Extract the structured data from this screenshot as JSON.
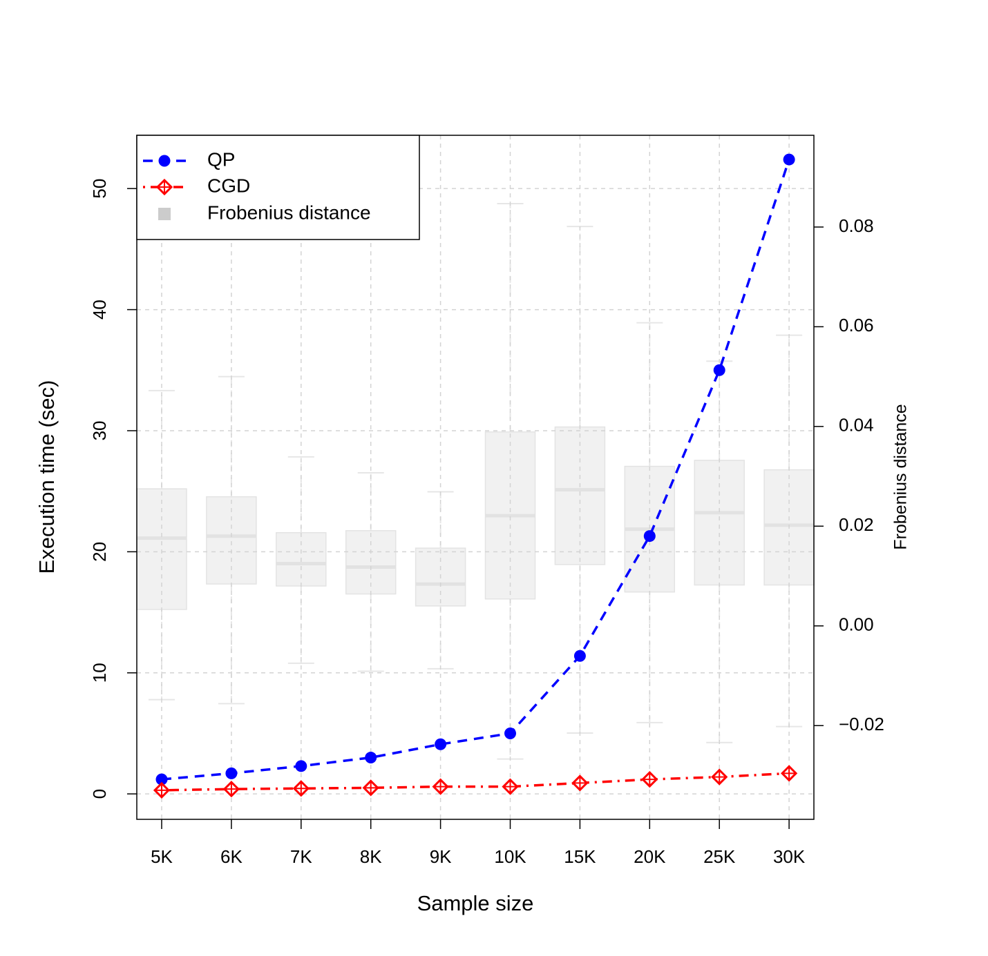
{
  "chart_data": {
    "type": "line",
    "x_label": "Sample size",
    "y_label": "Execution time (sec)",
    "y2_label": "Frobenius distance",
    "categories": [
      "5K",
      "6K",
      "7K",
      "8K",
      "9K",
      "10K",
      "15K",
      "20K",
      "25K",
      "30K"
    ],
    "series": [
      {
        "name": "QP",
        "color": "#0000ff",
        "dash": "dashed",
        "marker": "circle",
        "values": [
          1.2,
          1.7,
          2.3,
          3.0,
          4.1,
          5.0,
          11.4,
          21.3,
          35.0,
          52.4
        ]
      },
      {
        "name": "CGD",
        "color": "#ff0000",
        "dash": "dotdash",
        "marker": "diamond-plus",
        "values": [
          0.3,
          0.4,
          0.45,
          0.5,
          0.6,
          0.6,
          0.9,
          1.2,
          1.4,
          1.7
        ]
      }
    ],
    "boxes": {
      "name": "Frobenius distance",
      "color": "#cccccc",
      "axis": "y2",
      "min": [
        -0.0148,
        -0.0156,
        -0.0075,
        -0.0091,
        -0.0086,
        -0.0267,
        -0.0215,
        -0.0194,
        -0.0234,
        -0.0202
      ],
      "q1": [
        0.0033,
        0.0084,
        0.008,
        0.0064,
        0.004,
        0.0054,
        0.0123,
        0.0068,
        0.0082,
        0.0082
      ],
      "median": [
        0.0176,
        0.018,
        0.0125,
        0.0118,
        0.0084,
        0.0221,
        0.0273,
        0.0194,
        0.0227,
        0.0202
      ],
      "q3": [
        0.0275,
        0.0259,
        0.0187,
        0.0191,
        0.0156,
        0.0389,
        0.0399,
        0.032,
        0.0332,
        0.0313
      ],
      "max": [
        0.0472,
        0.05,
        0.0339,
        0.0307,
        0.0269,
        0.0847,
        0.0801,
        0.0608,
        0.0531,
        0.0583
      ]
    },
    "ylim": [
      -2.1,
      54.4
    ],
    "yticks": [
      0,
      10,
      20,
      30,
      40,
      50
    ],
    "y2lim": [
      -0.0388,
      0.0984
    ],
    "y2ticks": [
      {
        "value": -0.02,
        "label": "−0.02"
      },
      {
        "value": 0,
        "label": "0.00"
      },
      0.02,
      0.04,
      0.06,
      0.08
    ],
    "grid": true,
    "legend": "top-left"
  }
}
